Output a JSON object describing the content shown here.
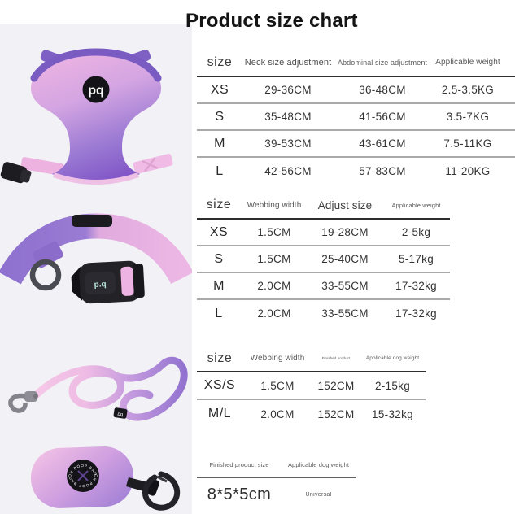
{
  "title": "Product size chart",
  "brand": {
    "logo": "pq",
    "logo_dotted": "p.q",
    "bag_patch_top": "OH POOP BAG",
    "bag_patch_bottom": "OH POOP BAG"
  },
  "colors": {
    "pink": "#efb9e4",
    "purple": "#8a66cc",
    "mint": "#b7e5d8",
    "buckle_black": "#232227",
    "photo_background": "#f2f1f5",
    "header_line": "#2e2e2e",
    "row_line": "#aaa8a8"
  },
  "tables": [
    {
      "name": "harness-size-table",
      "headers": [
        "size",
        "Neck size adjustment",
        "Abdominal size adjustment",
        "Applicable weight"
      ],
      "rows": [
        [
          "XS",
          "29-36CM",
          "36-48CM",
          "2.5-3.5KG"
        ],
        [
          "S",
          "35-48CM",
          "41-56CM",
          "3.5-7KG"
        ],
        [
          "M",
          "39-53CM",
          "43-61CM",
          "7.5-11KG"
        ],
        [
          "L",
          "42-56CM",
          "57-83CM",
          "11-20KG"
        ]
      ]
    },
    {
      "name": "collar-size-table",
      "headers": [
        "size",
        "Webbing width",
        "Adjust size",
        "Applicable weight"
      ],
      "rows": [
        [
          "XS",
          "1.5CM",
          "19-28CM",
          "2-5kg"
        ],
        [
          "S",
          "1.5CM",
          "25-40CM",
          "5-17kg"
        ],
        [
          "M",
          "2.0CM",
          "33-55CM",
          "17-32kg"
        ],
        [
          "L",
          "2.0CM",
          "33-55CM",
          "17-32kg"
        ]
      ]
    },
    {
      "name": "leash-size-table",
      "headers": [
        "size",
        "Webbing width",
        "Finished product",
        "Applicable dog weight"
      ],
      "rows": [
        [
          "XS/S",
          "1.5CM",
          "152CM",
          "2-15kg"
        ],
        [
          "M/L",
          "2.0CM",
          "152CM",
          "15-32kg"
        ]
      ]
    },
    {
      "name": "poop-bag-size-table",
      "headers": [
        "Finished product size",
        "Applicable dog weight"
      ],
      "rows": [
        [
          "8*5*5cm",
          "Universal"
        ]
      ]
    }
  ]
}
